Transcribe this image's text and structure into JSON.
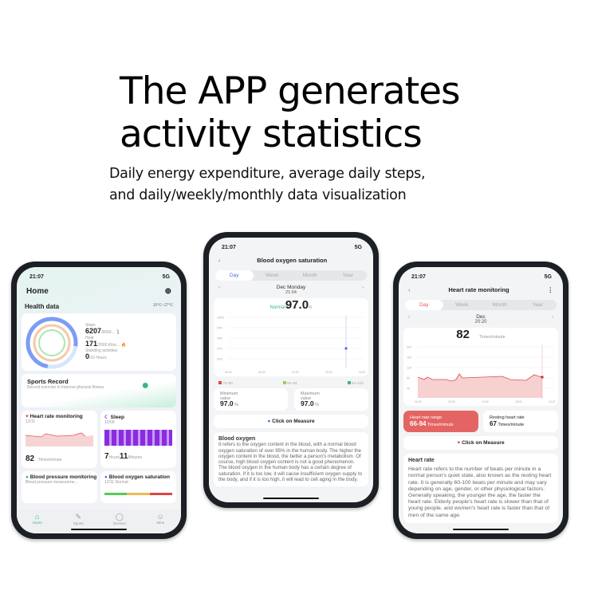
{
  "headline": {
    "line1": "The APP generates",
    "line2": "activity statistics"
  },
  "subheadline": {
    "line1": "Daily energy expenditure, average daily steps,",
    "line2": "and daily/weekly/monthly data visualization"
  },
  "status": {
    "time": "21:07",
    "network": "5G"
  },
  "home": {
    "title": "Home",
    "section": "Health data",
    "weather": "16℃~27℃",
    "steps": {
      "label": "Steps",
      "value": "6207",
      "goal": "/8000..."
    },
    "heat": {
      "label": "Heat",
      "value": "171",
      "goal": "/2000 Kiloc..."
    },
    "standing": {
      "label": "Standing activities",
      "value": "0",
      "goal": "/10 Hours"
    },
    "sports": {
      "title": "Sports Record",
      "desc": "Record exercise to improve physical fitness"
    },
    "heart": {
      "title": "Heart rate monitoring",
      "date": "12/11",
      "value": "82",
      "unit": "Times/minute"
    },
    "sleep": {
      "title": "Sleep",
      "date": "12/09",
      "hours": "7",
      "hours_unit": "Hours",
      "minutes": "11",
      "minutes_unit": "Minutes"
    },
    "bp": {
      "title": "Blood pressure monitoring",
      "desc": "Blood pressure measureme..."
    },
    "oxygen": {
      "title": "Blood oxygen saturation",
      "desc": "12/11 Normal"
    },
    "tabs": [
      {
        "label": "Home",
        "icon": "home-icon"
      },
      {
        "label": "Sports",
        "icon": "sports-icon"
      },
      {
        "label": "Devices",
        "icon": "devices-icon"
      },
      {
        "label": "Mine",
        "icon": "user-icon"
      }
    ]
  },
  "oxygen": {
    "title": "Blood oxygen saturation",
    "tabs": [
      "Day",
      "Week",
      "Month",
      "Year"
    ],
    "date": "Dec Monday",
    "time": "21:04",
    "status": "Normal",
    "value": "97.0",
    "unit": "%",
    "yticks": [
      "100%",
      "99%",
      "98%",
      "97%",
      "96%"
    ],
    "xticks": [
      "00:00",
      "06:00",
      "12:00",
      "18:00",
      "24:00"
    ],
    "legend": [
      {
        "label": "70~90",
        "color": "#e04848"
      },
      {
        "label": "90~94",
        "color": "#9ccc4a"
      },
      {
        "label": "94~100",
        "color": "#3db487"
      }
    ],
    "min": {
      "label1": "Minimum",
      "label2": "value",
      "value": "97.0",
      "unit": "%"
    },
    "max": {
      "label1": "Maximum",
      "label2": "value",
      "value": "97.0",
      "unit": "%"
    },
    "measure": "Click on Measure",
    "info_title": "Blood oxygen",
    "info": "It refers to the oxygen content in the blood, with a normal blood oxygen saturation of over 95% in the human body. The higher the oxygen content in the blood, the better a person's metabolism. Of course, high blood oxygen content is not a good phenomenon. The blood oxygen in the human body has a certain degree of saturation. If it is too low, it will cause insufficient oxygen supply to the body, and if it is too high, it will lead to cell aging in the body."
  },
  "heart": {
    "title": "Heart rate monitoring",
    "tabs": [
      "Day",
      "Week",
      "Month",
      "Year"
    ],
    "date": "Dec",
    "time": "20:20",
    "value": "82",
    "unit": "Times/minute",
    "yticks": [
      "200",
      "160",
      "120",
      "80",
      "40"
    ],
    "xticks": [
      "00:00",
      "06:00",
      "12:00",
      "18:00",
      "24:00"
    ],
    "range": {
      "label": "Heart rate range",
      "value": "66-94",
      "unit": "Times/minute"
    },
    "resting": {
      "label": "Resting heart rate",
      "value": "67",
      "unit": "Times/minute"
    },
    "measure": "Click on Measure",
    "info_title": "Heart rate",
    "info": "Heart rate refers to the number of beats per minute in a normal person's quiet state, also known as the resting heart rate. It is generally 60-100 beats per minute and may vary depending on age, gender, or other physiological factors. Generally speaking, the younger the age, the faster the heart rate. Elderly people's heart rate is slower than that of young people, and women's heart rate is faster than that of men of the same age."
  },
  "colors": {
    "heart": "#e05a5a",
    "oxygen_dot": "#4a6fd8",
    "sleep": "#9b3fe0",
    "green": "#3db487"
  }
}
